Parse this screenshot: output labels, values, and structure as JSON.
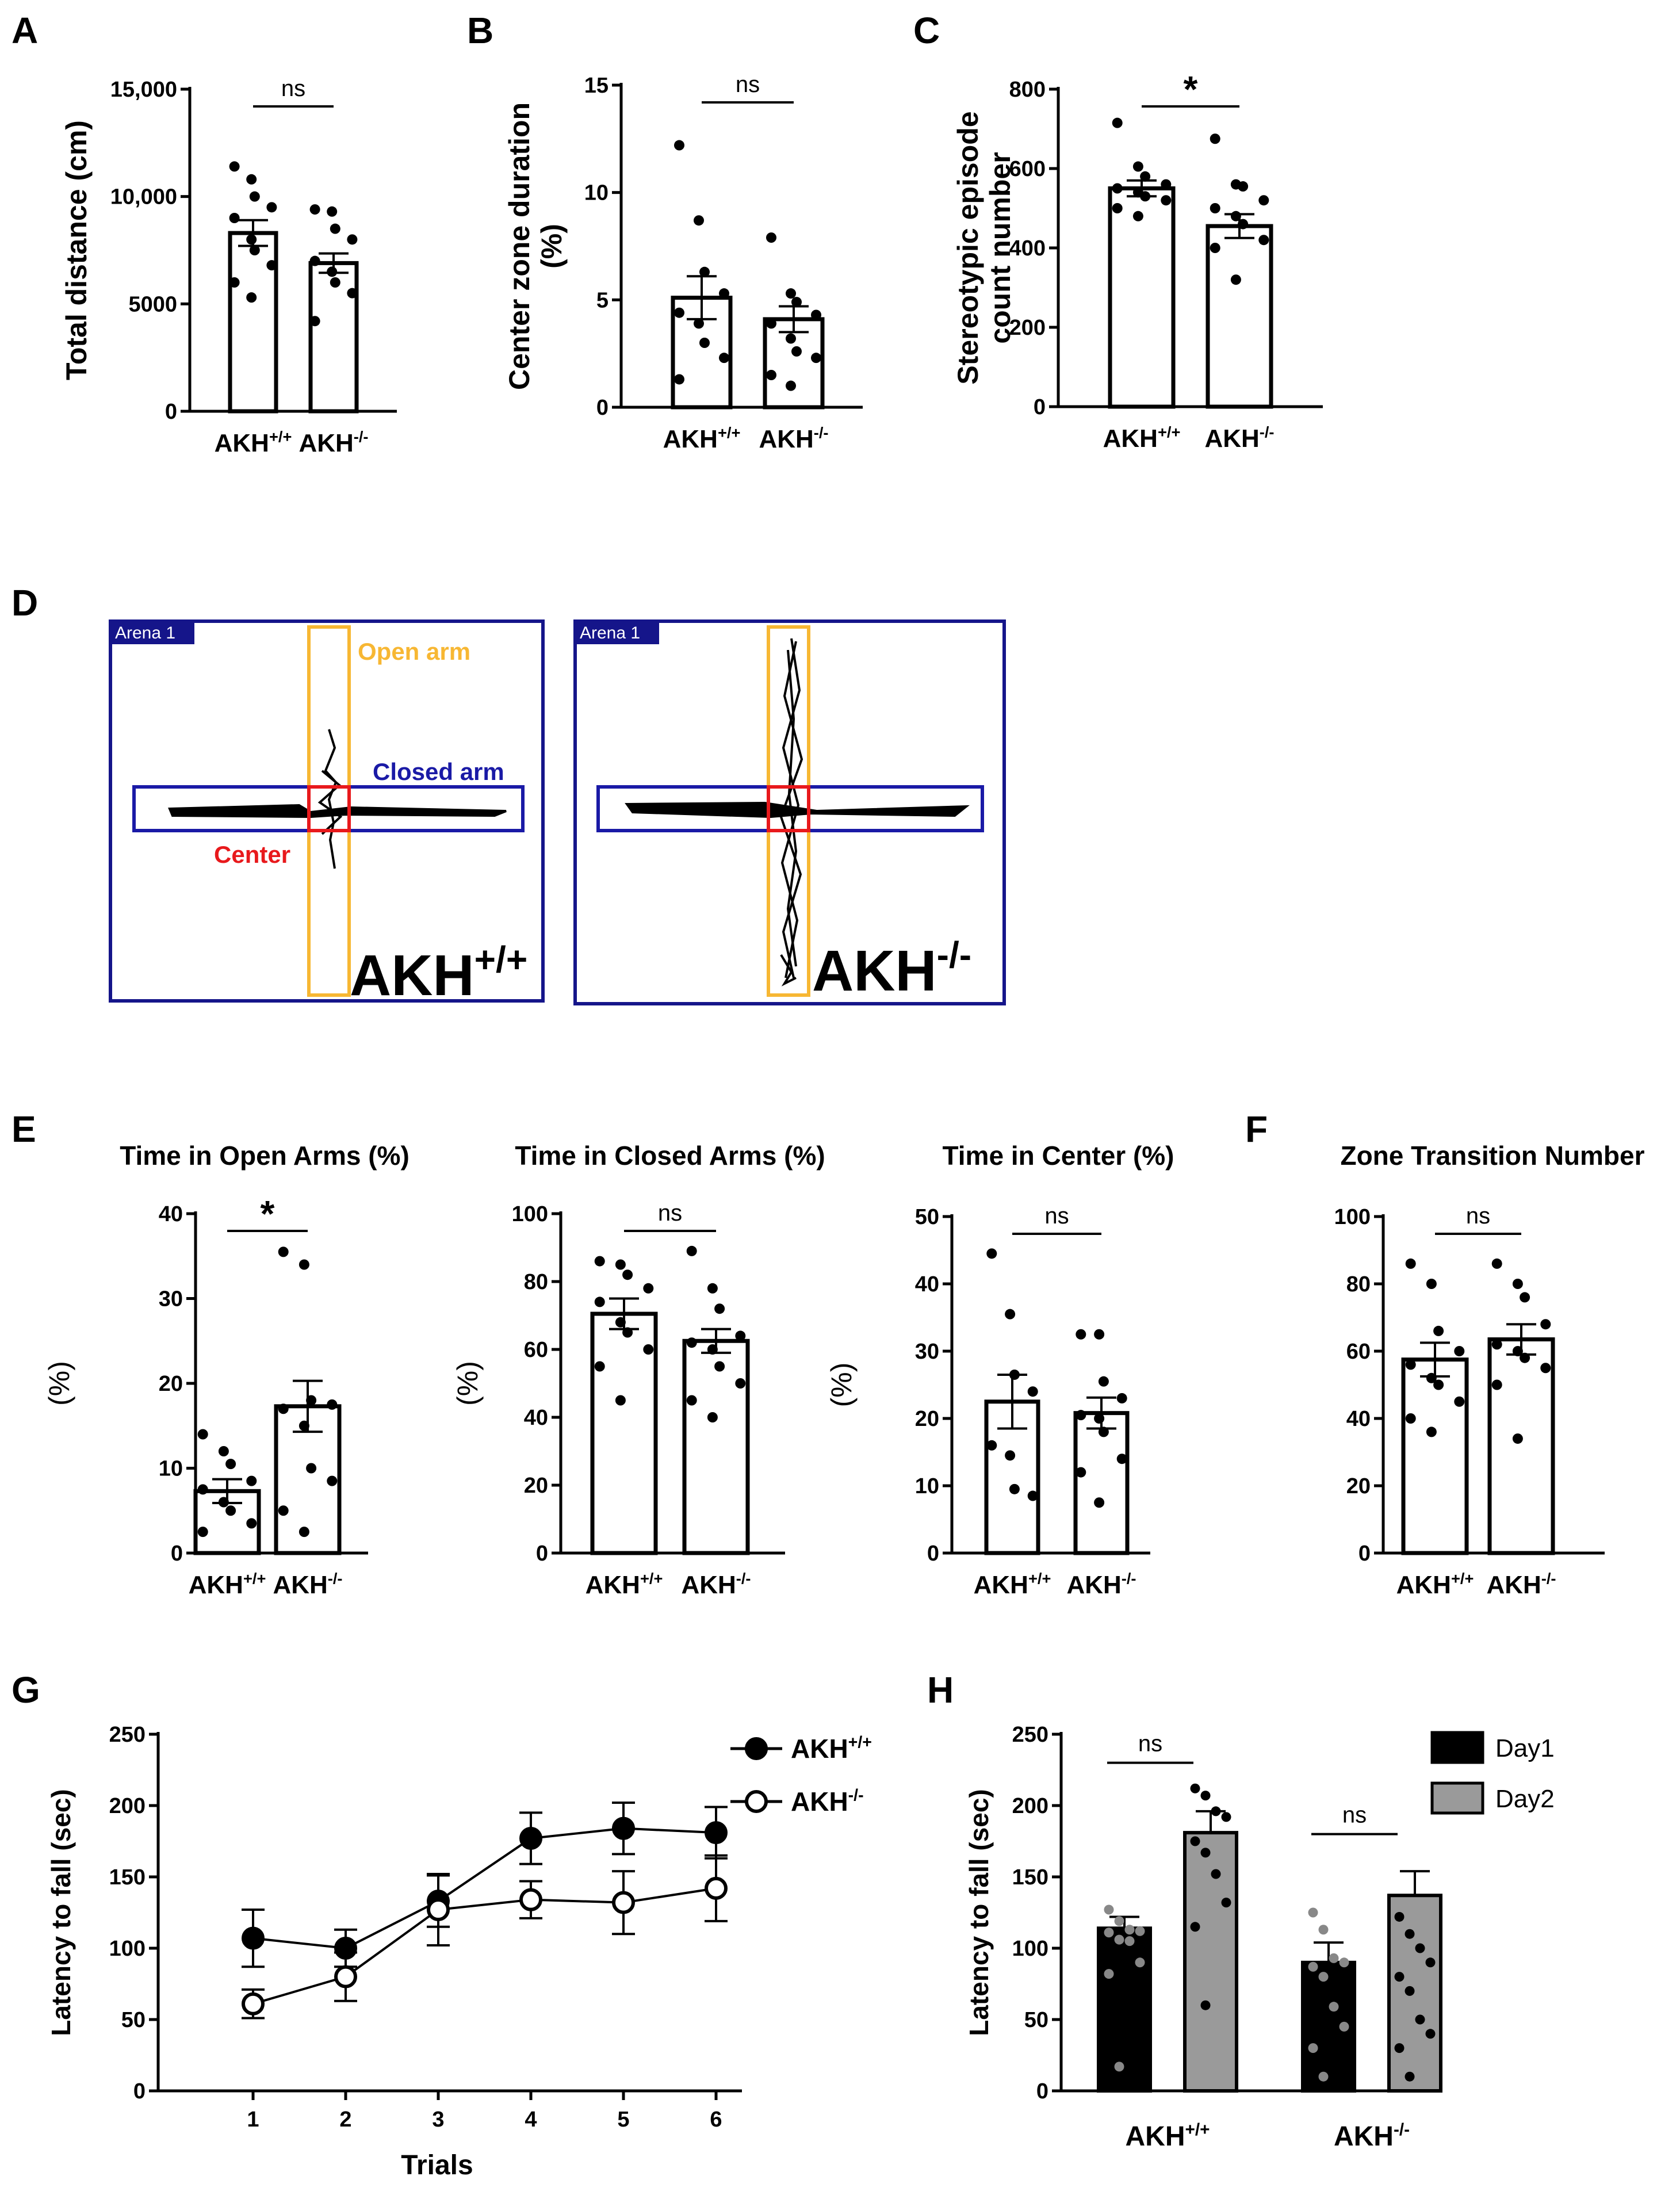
{
  "panels": {
    "A": "A",
    "B": "B",
    "C": "C",
    "D": "D",
    "E": "E",
    "F": "F",
    "G": "G",
    "H": "H"
  },
  "groups": {
    "wt_base": "AKH",
    "wt_sup": "+/+",
    "ko_base": "AKH",
    "ko_sup": "-/-"
  },
  "colors": {
    "orange": "#F7B733",
    "blue": "#1A1AA6",
    "red": "#E8191C",
    "navy": "#15158A",
    "gray": "#9A9A9A",
    "dark": "#000000"
  },
  "arena": {
    "tag": "Arena 1",
    "open_arm": "Open arm",
    "closed_arm": "Closed arm",
    "center": "Center"
  },
  "chart_data": [
    {
      "id": "A",
      "type": "bar",
      "title": "",
      "ylabel": "Total distance (cm)",
      "ylim": [
        0,
        15000
      ],
      "ticks": [
        0,
        5000,
        10000,
        15000
      ],
      "tick_labels": [
        "0",
        "5000",
        "10,000",
        "15,000"
      ],
      "sig": "ns",
      "categories": [
        "AKH+/+",
        "AKH-/-"
      ],
      "values": [
        8300,
        6900
      ],
      "sem": [
        600,
        450
      ],
      "points": [
        [
          11400,
          10800,
          10000,
          9500,
          9000,
          8000,
          7500,
          6800,
          6000,
          5300
        ],
        [
          9400,
          9300,
          8500,
          8000,
          7000,
          6500,
          6000,
          5500,
          4200
        ]
      ]
    },
    {
      "id": "B",
      "type": "bar",
      "title": "",
      "ylabel": "Center zone duration (%)",
      "ylim": [
        0,
        15
      ],
      "ticks": [
        0,
        5,
        10,
        15
      ],
      "tick_labels": [
        "0",
        "5",
        "10",
        "15"
      ],
      "sig": "ns",
      "categories": [
        "AKH+/+",
        "AKH-/-"
      ],
      "values": [
        5.1,
        4.1
      ],
      "sem": [
        1.0,
        0.6
      ],
      "points": [
        [
          12.2,
          8.7,
          6.3,
          5.3,
          4.4,
          3.9,
          3.0,
          2.3,
          1.3
        ],
        [
          7.9,
          5.3,
          4.9,
          4.3,
          3.9,
          3.2,
          2.6,
          2.3,
          1.5,
          1.0
        ]
      ]
    },
    {
      "id": "C",
      "type": "bar",
      "title": "",
      "ylabel": "Stereotypic episode count number",
      "ylim": [
        0,
        800
      ],
      "ticks": [
        0,
        200,
        400,
        600,
        800
      ],
      "tick_labels": [
        "0",
        "200",
        "400",
        "600",
        "800"
      ],
      "sig": "*",
      "categories": [
        "AKH+/+",
        "AKH-/-"
      ],
      "values": [
        550,
        455
      ],
      "sem": [
        20,
        30
      ],
      "points": [
        [
          715,
          605,
          580,
          560,
          550,
          540,
          530,
          520,
          500,
          480
        ],
        [
          675,
          560,
          555,
          520,
          500,
          480,
          460,
          420,
          400,
          320
        ]
      ]
    },
    {
      "id": "E1",
      "type": "bar",
      "title": "Time in  Open Arms (%)",
      "ylabel": "(%)",
      "ylim": [
        0,
        40
      ],
      "ticks": [
        0,
        10,
        20,
        30,
        40
      ],
      "tick_labels": [
        "0",
        "10",
        "20",
        "30",
        "40"
      ],
      "sig": "*",
      "categories": [
        "AKH+/+",
        "AKH-/-"
      ],
      "values": [
        7.3,
        17.3
      ],
      "sem": [
        1.4,
        3.0
      ],
      "points": [
        [
          14.0,
          12.0,
          10.5,
          8.5,
          7.5,
          6.0,
          5.0,
          3.5,
          2.5
        ],
        [
          35.5,
          34.0,
          18.0,
          17.5,
          17.0,
          15.0,
          10.0,
          8.5,
          5.0,
          2.5
        ]
      ]
    },
    {
      "id": "E2",
      "type": "bar",
      "title": "Time in Closed Arms (%)",
      "ylabel": "(%)",
      "ylim": [
        0,
        100
      ],
      "ticks": [
        0,
        20,
        40,
        60,
        80,
        100
      ],
      "tick_labels": [
        "0",
        "20",
        "40",
        "60",
        "80",
        "100"
      ],
      "sig": "ns",
      "categories": [
        "AKH+/+",
        "AKH-/-"
      ],
      "values": [
        70.5,
        62.5
      ],
      "sem": [
        4.5,
        3.5
      ],
      "points": [
        [
          86,
          85,
          82,
          78,
          74,
          68,
          65,
          60,
          55,
          45
        ],
        [
          89,
          78,
          72,
          64,
          62,
          60,
          55,
          50,
          45,
          40
        ]
      ]
    },
    {
      "id": "E3",
      "type": "bar",
      "title": "Time in Center (%)",
      "ylabel": "(%)",
      "ylim": [
        0,
        50
      ],
      "ticks": [
        0,
        10,
        20,
        30,
        40,
        50
      ],
      "tick_labels": [
        "0",
        "10",
        "20",
        "30",
        "40",
        "50"
      ],
      "sig": "ns",
      "categories": [
        "AKH+/+",
        "AKH-/-"
      ],
      "values": [
        22.5,
        20.8
      ],
      "sem": [
        4.0,
        2.3
      ],
      "points": [
        [
          44.5,
          35.5,
          26.5,
          24.0,
          16.0,
          14.5,
          9.5,
          8.5
        ],
        [
          32.5,
          32.5,
          25.5,
          23.0,
          20.5,
          20.0,
          18.0,
          14.0,
          12.0,
          7.5
        ]
      ]
    },
    {
      "id": "F",
      "type": "bar",
      "title": "Zone Transition Number",
      "ylabel": "",
      "ylim": [
        0,
        100
      ],
      "ticks": [
        0,
        20,
        40,
        60,
        80,
        100
      ],
      "tick_labels": [
        "0",
        "20",
        "40",
        "60",
        "80",
        "100"
      ],
      "sig": "ns",
      "categories": [
        "AKH+/+",
        "AKH-/-"
      ],
      "values": [
        57.5,
        63.5
      ],
      "sem": [
        5.0,
        4.5
      ],
      "points": [
        [
          86,
          80,
          66,
          60,
          56,
          52,
          50,
          45,
          40,
          36
        ],
        [
          86,
          80,
          76,
          68,
          62,
          60,
          58,
          55,
          50,
          34
        ]
      ]
    },
    {
      "id": "G",
      "type": "line",
      "title": "",
      "xlabel": "Trials",
      "ylabel": "Latency to fall (sec)",
      "ylim": [
        0,
        250
      ],
      "ticks": [
        0,
        50,
        100,
        150,
        200,
        250
      ],
      "tick_labels": [
        "0",
        "50",
        "100",
        "150",
        "200",
        "250"
      ],
      "x": [
        1,
        2,
        3,
        4,
        5,
        6
      ],
      "series": [
        {
          "name": "AKH+/+",
          "filled": true,
          "values": [
            107,
            100,
            133,
            177,
            184,
            181
          ],
          "sem": [
            20,
            13,
            18,
            18,
            18,
            18
          ]
        },
        {
          "name": "AKH-/-",
          "filled": false,
          "values": [
            61,
            80,
            127,
            134,
            132,
            142
          ],
          "sem": [
            10,
            17,
            25,
            13,
            22,
            23
          ]
        }
      ],
      "legend": "top-right"
    },
    {
      "id": "H",
      "type": "bar",
      "title": "",
      "ylabel": "Latency to fall (sec)",
      "ylim": [
        0,
        250
      ],
      "ticks": [
        0,
        50,
        100,
        150,
        200,
        250
      ],
      "tick_labels": [
        "0",
        "50",
        "100",
        "150",
        "200",
        "250"
      ],
      "categories": [
        "AKH+/+",
        "AKH-/-"
      ],
      "series": [
        {
          "name": "Day1",
          "values": [
            114,
            90
          ],
          "sem": [
            8,
            14
          ]
        },
        {
          "name": "Day2",
          "values": [
            181,
            137
          ],
          "sem": [
            15,
            17
          ]
        }
      ],
      "sig": [
        "ns",
        "ns"
      ],
      "points": [
        [
          [
            127,
            119,
            113,
            112,
            111,
            106,
            105,
            90,
            82,
            17
          ],
          [
            212,
            207,
            196,
            192,
            175,
            167,
            152,
            132,
            115,
            60
          ]
        ],
        [
          [
            125,
            113,
            93,
            90,
            87,
            80,
            59,
            45,
            30,
            10
          ],
          [
            122,
            110,
            100,
            90,
            80,
            70,
            50,
            40,
            30,
            10
          ]
        ]
      ],
      "legend": "top-right"
    }
  ]
}
